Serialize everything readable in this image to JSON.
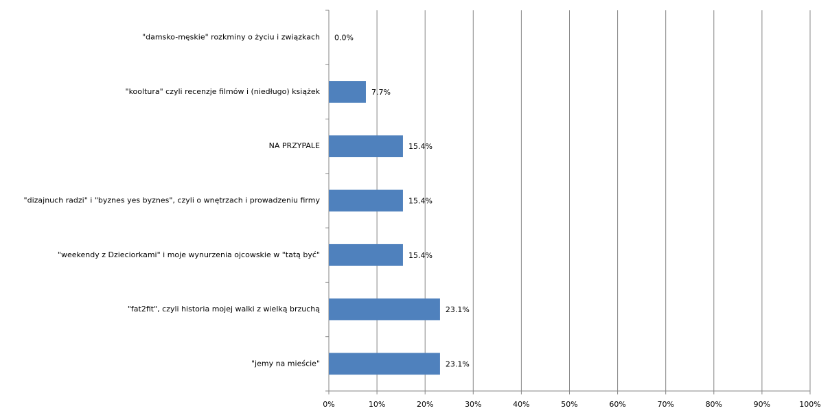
{
  "chart_data": {
    "type": "bar",
    "categories": [
      "\"damsko-męskie\" rozkminy o życiu i związkach",
      "\"kooltura\" czyli recenzje filmów i (niedługo) książek",
      "NA PRZYPALE",
      "\"dizajnuch radzi\" i \"byznes yes byznes\", czyli o wnętrzach i prowadzeniu firmy",
      "\"weekendy z Dzieciorkami\" i moje wynurzenia ojcowskie w \"tatą być\"",
      "\"fat2fit\", czyli historia mojej walki z wielką brzuchą",
      "\"jemy na mieście\""
    ],
    "values": [
      0,
      7.7,
      15.4,
      15.4,
      15.4,
      23.1,
      23.1
    ],
    "value_labels": [
      "0.0%",
      "7.7%",
      "15.4%",
      "15.4%",
      "15.4%",
      "23.1%",
      "23.1%"
    ],
    "color": "#4f81bd",
    "xlim": [
      0,
      100
    ],
    "xticks": [
      {
        "value": 0,
        "label": "0%"
      },
      {
        "value": 10,
        "label": "10%"
      },
      {
        "value": 20,
        "label": "20%"
      },
      {
        "value": 30,
        "label": "30%"
      },
      {
        "value": 40,
        "label": "40%"
      },
      {
        "value": 50,
        "label": "50%"
      },
      {
        "value": 60,
        "label": "60%"
      },
      {
        "value": 70,
        "label": "70%"
      },
      {
        "value": 80,
        "label": "80%"
      },
      {
        "value": 90,
        "label": "90%"
      },
      {
        "value": 100,
        "label": "100%"
      }
    ],
    "grid": true
  }
}
